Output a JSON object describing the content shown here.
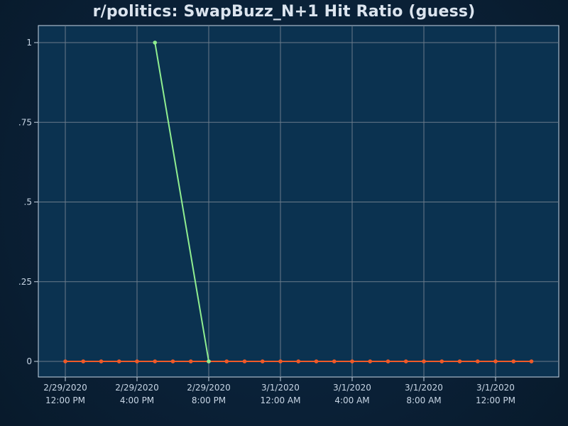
{
  "chart_data": {
    "type": "line",
    "title": "r/politics: SwapBuzz_N+1 Hit Ratio (guess)",
    "xlabel": "",
    "ylabel": "",
    "ylim": [
      0,
      1
    ],
    "y_ticks": [
      0,
      0.25,
      0.5,
      0.75,
      1
    ],
    "y_tick_labels": [
      "0",
      ".25",
      ".5",
      ".75",
      "1"
    ],
    "x_ticks": [
      {
        "date": "2/29/2020",
        "time": "12:00 PM",
        "hour": 0
      },
      {
        "date": "2/29/2020",
        "time": "4:00 PM",
        "hour": 4
      },
      {
        "date": "2/29/2020",
        "time": "8:00 PM",
        "hour": 8
      },
      {
        "date": "3/1/2020",
        "time": "12:00 AM",
        "hour": 12
      },
      {
        "date": "3/1/2020",
        "time": "4:00 AM",
        "hour": 16
      },
      {
        "date": "3/1/2020",
        "time": "8:00 AM",
        "hour": 20
      },
      {
        "date": "3/1/2020",
        "time": "12:00 PM",
        "hour": 24
      }
    ],
    "xlim_hours": [
      -1.5,
      28.5
    ],
    "grid": true,
    "series": [
      {
        "color": "#f05a28",
        "x_hours": [
          0,
          1,
          2,
          3,
          4,
          5,
          6,
          7,
          8,
          9,
          10,
          11,
          12,
          13,
          14,
          15,
          16,
          17,
          18,
          19,
          20,
          21,
          22,
          23,
          24,
          25,
          26
        ],
        "values": [
          0,
          0,
          0,
          0,
          0,
          0,
          0,
          0,
          0,
          0,
          0,
          0,
          0,
          0,
          0,
          0,
          0,
          0,
          0,
          0,
          0,
          0,
          0,
          0,
          0,
          0,
          0
        ]
      },
      {
        "color": "#90ee90",
        "x_hours": [
          5,
          8
        ],
        "values": [
          1,
          0
        ]
      }
    ]
  },
  "colors": {
    "plot_background": "#0b3250",
    "grid": "#6b7b8a",
    "axis": "#c8d6e5",
    "text": "#c8d6e5"
  }
}
